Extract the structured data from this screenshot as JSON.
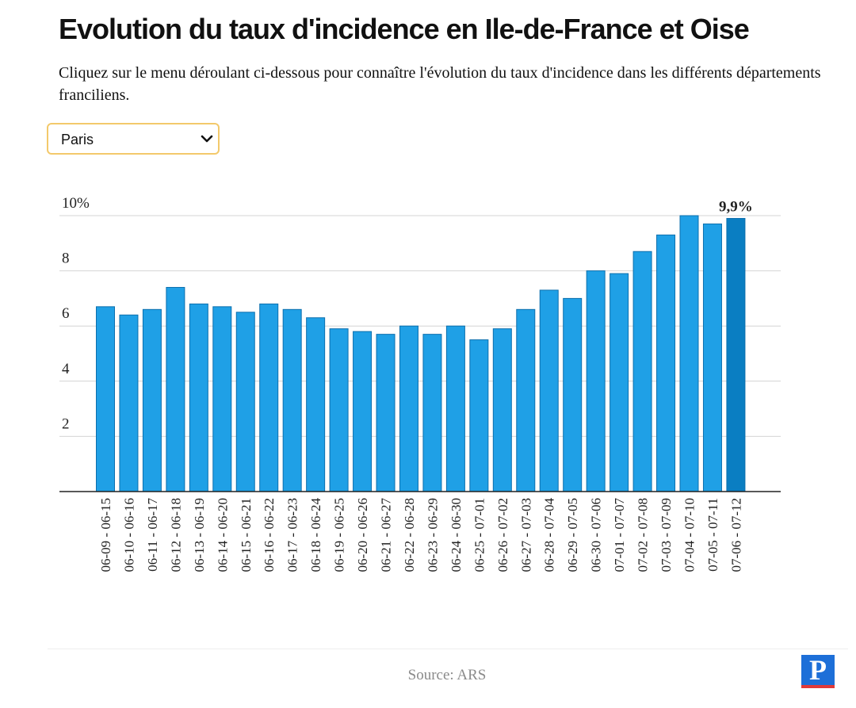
{
  "page": {
    "title": "Evolution du taux d'incidence en Ile-de-France et Oise",
    "subtitle": "Cliquez sur le menu déroulant ci-dessous pour connaître l'évolution du taux d'incidence dans les différents départements franciliens.",
    "select": {
      "value": "Paris",
      "icon": "chevron-down-icon"
    },
    "source": "Source: ARS",
    "logo": "P"
  },
  "colors": {
    "bar": "#1fa0e6",
    "bar_highlight": "#0a7ec2",
    "bar_stroke": "#0d6fad",
    "grid": "#d4d4d4",
    "axis": "#222222",
    "text": "#222222"
  },
  "chart_data": {
    "type": "bar",
    "title": "",
    "xlabel": "",
    "ylabel": "",
    "ylim": [
      0,
      10
    ],
    "y_ticks": [
      2,
      4,
      6,
      8,
      10
    ],
    "y_tick_labels": [
      "2",
      "4",
      "6",
      "8",
      "10%"
    ],
    "grid": true,
    "categories": [
      "06-09 - 06-15",
      "06-10 - 06-16",
      "06-11 - 06-17",
      "06-12 - 06-18",
      "06-13 - 06-19",
      "06-14 - 06-20",
      "06-15 - 06-21",
      "06-16 - 06-22",
      "06-17 - 06-23",
      "06-18 - 06-24",
      "06-19 - 06-25",
      "06-20 - 06-26",
      "06-21 - 06-27",
      "06-22 - 06-28",
      "06-23 - 06-29",
      "06-24 - 06-30",
      "06-25 - 07-01",
      "06-26 - 07-02",
      "06-27 - 07-03",
      "06-28 - 07-04",
      "06-29 - 07-05",
      "06-30 - 07-06",
      "07-01 - 07-07",
      "07-02 - 07-08",
      "07-03 - 07-09",
      "07-04 - 07-10",
      "07-05 - 07-11",
      "07-06 - 07-12"
    ],
    "values": [
      6.7,
      6.4,
      6.6,
      7.4,
      6.8,
      6.7,
      6.5,
      6.8,
      6.6,
      6.3,
      5.9,
      5.8,
      5.7,
      6.0,
      5.7,
      6.0,
      5.5,
      5.9,
      6.6,
      7.3,
      7.0,
      8.0,
      7.9,
      8.7,
      9.3,
      10.0,
      9.7,
      9.9
    ],
    "highlight_index": 27,
    "annotations": [
      {
        "index": 27,
        "text": "9,9%"
      }
    ]
  }
}
